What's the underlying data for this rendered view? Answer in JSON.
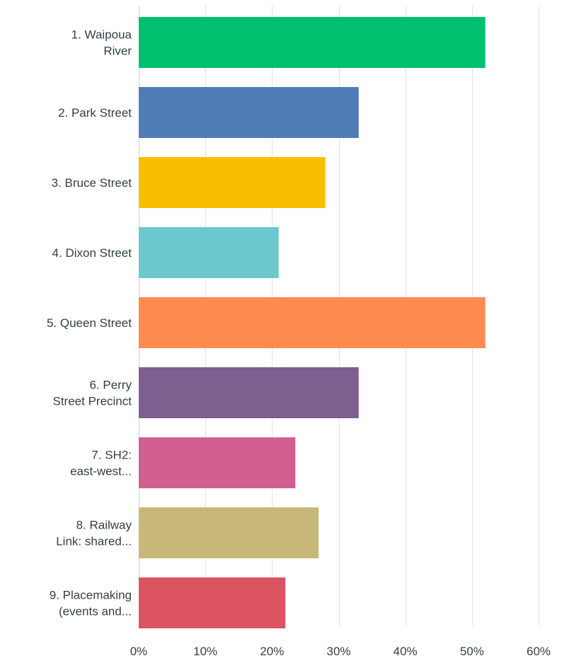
{
  "chart_data": {
    "type": "bar",
    "orientation": "horizontal",
    "categories": [
      [
        "1. Waipoua",
        "River"
      ],
      [
        "2. Park Street"
      ],
      [
        "3. Bruce Street"
      ],
      [
        "4. Dixon Street"
      ],
      [
        "5. Queen Street"
      ],
      [
        "6. Perry",
        "Street Precinct"
      ],
      [
        "7. SH2:",
        "east-west..."
      ],
      [
        "8. Railway",
        "Link: shared..."
      ],
      [
        "9. Placemaking",
        "(events and..."
      ]
    ],
    "values": [
      52,
      33,
      28,
      21,
      52,
      33,
      23.5,
      27,
      22
    ],
    "colors": [
      "#00bf6f",
      "#507cb6",
      "#f9be00",
      "#6bc8cd",
      "#ff8b4f",
      "#7f5e90",
      "#d25f90",
      "#c7b879",
      "#dc5462"
    ],
    "xlim": [
      0,
      60
    ],
    "ticks": [
      "0%",
      "10%",
      "20%",
      "30%",
      "40%",
      "50%",
      "60%"
    ],
    "tick_values": [
      0,
      10,
      20,
      30,
      40,
      50,
      60
    ],
    "grid": true,
    "title": "",
    "xlabel": "",
    "ylabel": ""
  }
}
